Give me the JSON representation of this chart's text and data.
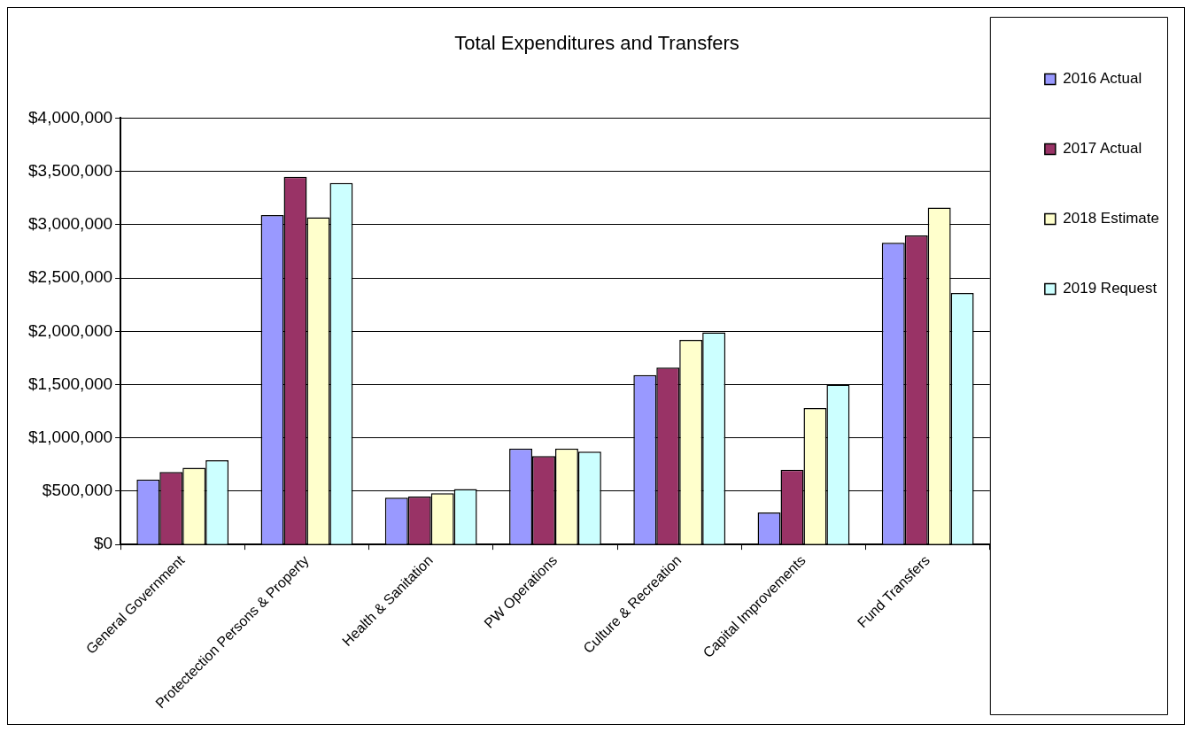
{
  "chart_data": {
    "type": "bar",
    "title": "Total Expenditures and Transfers",
    "categories": [
      "General Government",
      "Protectection Persons & Property",
      "Health & Sanitation",
      "PW Operations",
      "Culture & Recreation",
      "Capital Improvements",
      "Fund Transfers"
    ],
    "series": [
      {
        "name": "2016 Actual",
        "color": "#9999ff",
        "values": [
          610000,
          3090000,
          440000,
          900000,
          1590000,
          300000,
          2830000
        ]
      },
      {
        "name": "2017 Actual",
        "color": "#993366",
        "values": [
          680000,
          3450000,
          450000,
          830000,
          1660000,
          700000,
          2900000
        ]
      },
      {
        "name": "2018 Estimate",
        "color": "#ffffcc",
        "values": [
          720000,
          3070000,
          480000,
          900000,
          1920000,
          1280000,
          3160000
        ]
      },
      {
        "name": "2019 Request",
        "color": "#ccffff",
        "values": [
          790000,
          3390000,
          520000,
          870000,
          1990000,
          1500000,
          2360000
        ]
      }
    ],
    "ylim": [
      0,
      4000000
    ],
    "yticks": [
      {
        "value": 0,
        "label": "$0"
      },
      {
        "value": 500000,
        "label": "$500,000"
      },
      {
        "value": 1000000,
        "label": "$1,000,000"
      },
      {
        "value": 1500000,
        "label": "$1,500,000"
      },
      {
        "value": 2000000,
        "label": "$2,000,000"
      },
      {
        "value": 2500000,
        "label": "$2,500,000"
      },
      {
        "value": 3000000,
        "label": "$3,000,000"
      },
      {
        "value": 3500000,
        "label": "$3,500,000"
      },
      {
        "value": 4000000,
        "label": "$4,000,000"
      }
    ],
    "grid": "y",
    "legend": "right"
  }
}
